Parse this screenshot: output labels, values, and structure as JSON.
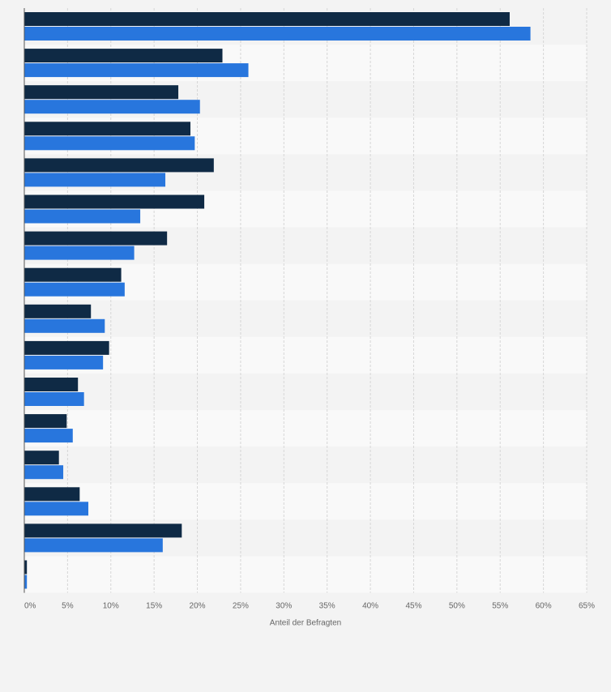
{
  "chart_data": {
    "type": "bar",
    "orientation": "horizontal",
    "xlabel": "Anteil der Befragten",
    "xlim": [
      0,
      65
    ],
    "x_ticks": [
      "0%",
      "5%",
      "10%",
      "15%",
      "20%",
      "25%",
      "30%",
      "35%",
      "40%",
      "45%",
      "50%",
      "55%",
      "60%",
      "65%"
    ],
    "categories": [
      "",
      "",
      "",
      "",
      "",
      "",
      "",
      "",
      "",
      "",
      "",
      "",
      "",
      "",
      "",
      ""
    ],
    "series": [
      {
        "values": [
          56.1,
          22.9,
          17.8,
          19.2,
          21.9,
          20.8,
          16.5,
          11.2,
          7.7,
          9.8,
          6.2,
          4.9,
          4.0,
          6.4,
          18.2,
          0.3
        ],
        "color": "#0f2a45"
      },
      {
        "values": [
          58.5,
          25.9,
          20.3,
          19.7,
          16.3,
          13.4,
          12.7,
          11.6,
          9.3,
          9.1,
          6.9,
          5.6,
          4.5,
          7.4,
          16.0,
          0.3
        ],
        "color": "#2876dd"
      }
    ],
    "grid": true,
    "legend": "none"
  }
}
